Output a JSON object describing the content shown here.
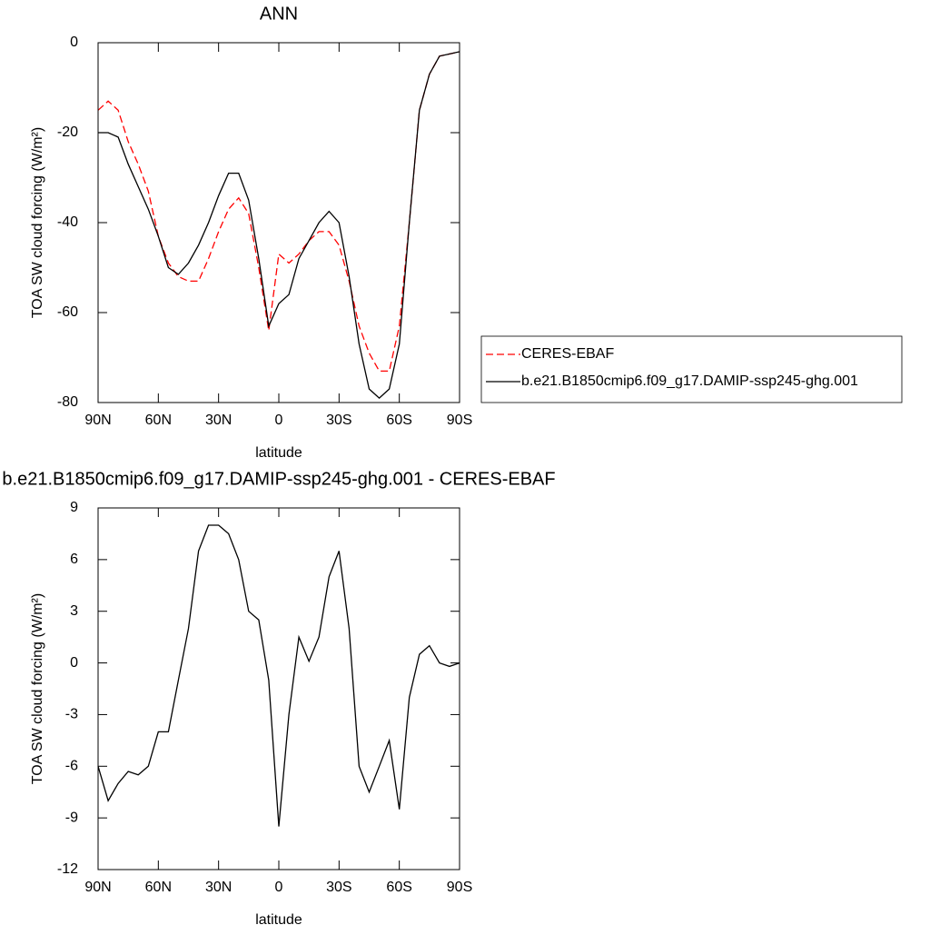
{
  "chart_data": [
    {
      "type": "line",
      "title": "ANN",
      "x_label": "latitude",
      "y_label": "TOA SW cloud forcing (W/m²)",
      "x": [
        90,
        85,
        80,
        75,
        70,
        65,
        60,
        55,
        50,
        45,
        40,
        35,
        30,
        25,
        20,
        15,
        10,
        5,
        0,
        -5,
        -10,
        -15,
        -20,
        -25,
        -30,
        -35,
        -40,
        -45,
        -50,
        -55,
        -60,
        -65,
        -70,
        -75,
        -80,
        -85,
        -90
      ],
      "xlim": [
        90,
        -90
      ],
      "xticks": [
        {
          "value": 90,
          "label": "90N"
        },
        {
          "value": 60,
          "label": "60N"
        },
        {
          "value": 30,
          "label": "30N"
        },
        0,
        {
          "value": -30,
          "label": "30S"
        },
        {
          "value": -60,
          "label": "60S"
        },
        {
          "value": -90,
          "label": "90S"
        }
      ],
      "ylim": [
        -80,
        0
      ],
      "yticks": [
        -80,
        -60,
        -40,
        -20,
        0
      ],
      "legend": "right",
      "series": [
        {
          "name": "CERES-EBAF",
          "color": "#ff0000",
          "line_style": "dashed",
          "values": [
            -15,
            -13,
            -15,
            -22,
            -27,
            -33,
            -43,
            -49,
            -52,
            -53,
            -53,
            -48,
            -42,
            -37,
            -34.5,
            -38,
            -50,
            -64,
            -47,
            -49,
            -47,
            -44,
            -42,
            -42,
            -45,
            -53,
            -63,
            -69,
            -73,
            -73,
            -63,
            -40,
            -15,
            -7,
            -3,
            -2.5,
            -2
          ]
        },
        {
          "name": "b.e21.B1850cmip6.f09_g17.DAMIP-ssp245-ghg.001",
          "color": "#000000",
          "line_style": "solid",
          "values": [
            -20,
            -20,
            -21,
            -27,
            -32,
            -37,
            -43,
            -50,
            -51.5,
            -49,
            -45,
            -40,
            -34,
            -29,
            -29,
            -35,
            -48,
            -63,
            -58,
            -56,
            -48,
            -44,
            -40,
            -37.5,
            -40,
            -52,
            -67,
            -77,
            -79,
            -77,
            -67,
            -40,
            -15,
            -7,
            -3,
            -2.5,
            -2
          ]
        }
      ]
    },
    {
      "type": "line",
      "title": "b.e21.B1850cmip6.f09_g17.DAMIP-ssp245-ghg.001 - CERES-EBAF",
      "x_label": "latitude",
      "y_label": "TOA SW cloud forcing (W/m²)",
      "x": [
        90,
        85,
        80,
        75,
        70,
        65,
        60,
        55,
        50,
        45,
        40,
        35,
        30,
        25,
        20,
        15,
        10,
        5,
        0,
        -5,
        -10,
        -15,
        -20,
        -25,
        -30,
        -35,
        -40,
        -45,
        -50,
        -55,
        -60,
        -65,
        -70,
        -75,
        -80,
        -85,
        -90
      ],
      "xlim": [
        90,
        -90
      ],
      "xticks": [
        {
          "value": 90,
          "label": "90N"
        },
        {
          "value": 60,
          "label": "60N"
        },
        {
          "value": 30,
          "label": "30N"
        },
        0,
        {
          "value": -30,
          "label": "30S"
        },
        {
          "value": -60,
          "label": "60S"
        },
        {
          "value": -90,
          "label": "90S"
        }
      ],
      "ylim": [
        -12,
        9
      ],
      "yticks": [
        -12,
        -9,
        -6,
        -3,
        0,
        3,
        6,
        9
      ],
      "series": [
        {
          "color": "#000000",
          "line_style": "solid",
          "values": [
            -6,
            -8,
            -7,
            -6.3,
            -6.5,
            -6,
            -4,
            -4,
            -1,
            2,
            6.5,
            8,
            8,
            7.5,
            6,
            3,
            2.5,
            -1,
            -9.5,
            -3,
            1.5,
            0.1,
            1.5,
            5,
            6.5,
            2,
            -6,
            -7.5,
            -6,
            -4.5,
            -8.5,
            -2,
            0.5,
            1,
            0,
            -0.2,
            0
          ]
        }
      ]
    }
  ]
}
